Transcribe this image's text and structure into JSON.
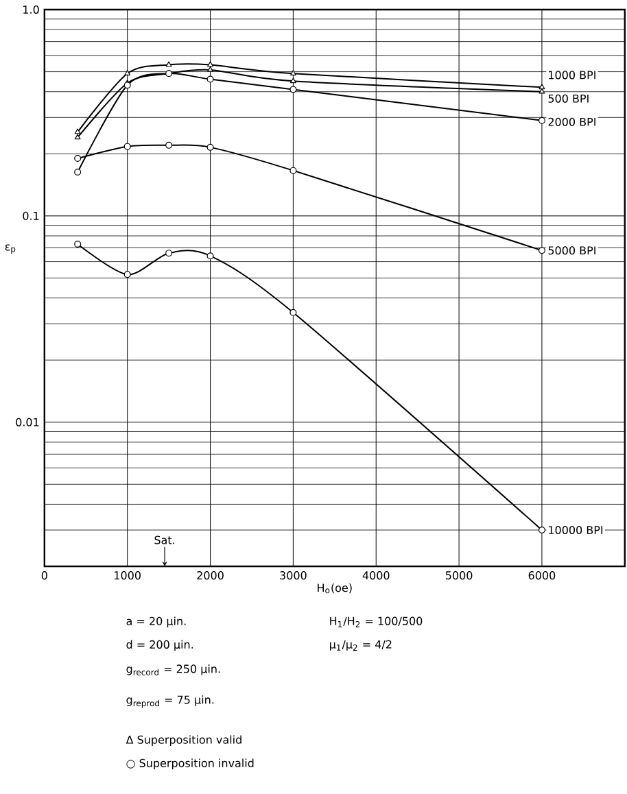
{
  "chart_data": {
    "type": "line",
    "xlabel": "H$_{o}$(oe)",
    "ylabel": "ε$_{p}$",
    "x": [
      400,
      1000,
      1500,
      2000,
      3000,
      6000
    ],
    "series": [
      {
        "name": "1000 BPI",
        "color": "#000000",
        "marker": "triangle",
        "values": [
          0.255,
          0.49,
          0.54,
          0.54,
          0.49,
          0.42
        ]
      },
      {
        "name": "500 BPI",
        "color": "#000000",
        "marker": "triangle",
        "values": [
          0.24,
          0.44,
          0.49,
          0.51,
          0.45,
          0.4
        ]
      },
      {
        "name": "2000 BPI",
        "color": "#000000",
        "marker": "circle",
        "values": [
          0.163,
          0.43,
          0.49,
          0.46,
          0.41,
          0.29
        ]
      },
      {
        "name": "5000 BPI",
        "color": "#000000",
        "marker": "circle",
        "values": [
          0.19,
          0.217,
          0.22,
          0.215,
          0.166,
          0.068
        ]
      },
      {
        "name": "10000 BPI",
        "color": "#000000",
        "marker": "circle",
        "values": [
          0.073,
          0.052,
          0.066,
          0.064,
          0.034,
          0.003
        ]
      }
    ],
    "xlim": [
      0,
      7000
    ],
    "xticks": [
      0,
      1000,
      2000,
      3000,
      4000,
      5000,
      6000
    ],
    "ylim": [
      0.002,
      1
    ],
    "yticks": [
      {
        "value": 1,
        "label": "1.0"
      },
      {
        "value": 0.1,
        "label": "0.1"
      },
      {
        "value": 0.01,
        "label": "0.01"
      }
    ],
    "log": "y",
    "grid": true,
    "line_style": "solid",
    "annotations": [
      {
        "text": "Sat.",
        "x": 1450,
        "y": 0.002
      },
      "a = 20 μin.",
      "d = 200 μin.",
      "g$_{record}$ = 250 μin.",
      "g$_{reprod}$ = 75 μin.",
      "H$_{1}$/H$_{2}$ = 100/500",
      "μ$_{1}$/μ$_{2}$ = 4/2",
      "Δ  Superposition valid",
      "○  Superposition invalid"
    ]
  }
}
